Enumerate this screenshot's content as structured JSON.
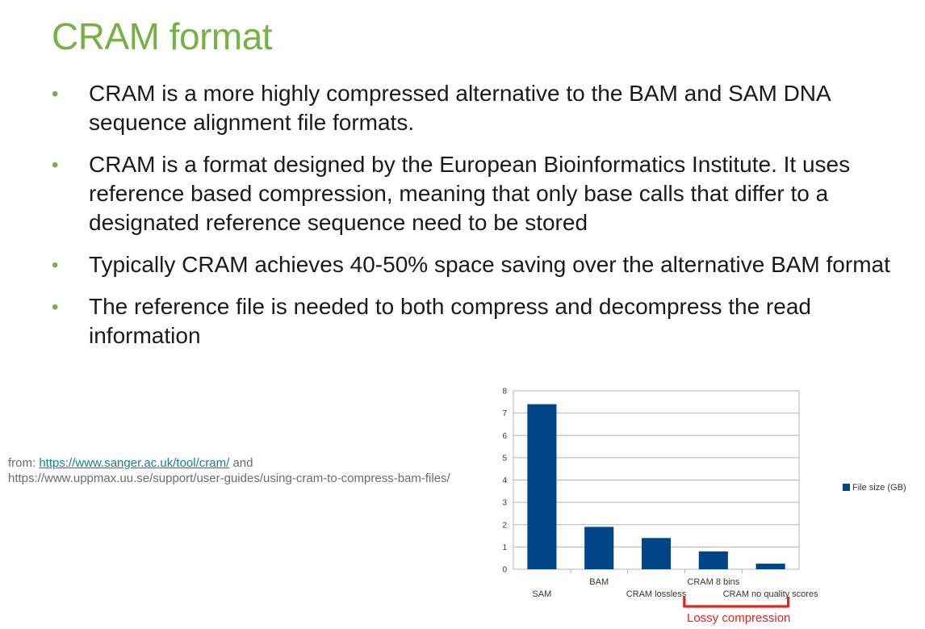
{
  "slide": {
    "title": "CRAM format",
    "bullets": [
      "CRAM is a more highly compressed alternative to the BAM and SAM DNA sequence alignment file formats.",
      "CRAM is a format designed by the European Bioinformatics Institute. It uses reference based compression, meaning that only base calls that differ to a designated reference sequence need to be stored",
      "Typically CRAM achieves 40-50% space saving over the alternative BAM format",
      "The reference file is needed to both compress and decompress the read information"
    ],
    "bullet_glyph": "•",
    "source": {
      "prefix": "from: ",
      "link": "https://www.sanger.ac.uk/tool/cram/",
      "middle": " and",
      "rest": "https://www.uppmax.uu.se/support/user-guides/using-cram-to-compress-bam-files/"
    },
    "annotation": "Lossy compression",
    "colors": {
      "title": "#77b045",
      "bar": "#004586",
      "annotation": "#e8231f"
    }
  },
  "chart_data": {
    "type": "bar",
    "categories": [
      "SAM",
      "BAM",
      "CRAM lossless",
      "CRAM 8 bins",
      "CRAM no quality scores"
    ],
    "series": [
      {
        "name": "File size (GB)",
        "values": [
          7.4,
          1.9,
          1.4,
          0.8,
          0.25
        ]
      }
    ],
    "ylim": [
      0,
      8
    ],
    "yticks": [
      "0",
      "1",
      "2",
      "3",
      "4",
      "5",
      "6",
      "7",
      "8"
    ],
    "grid": true,
    "legend": "right"
  }
}
